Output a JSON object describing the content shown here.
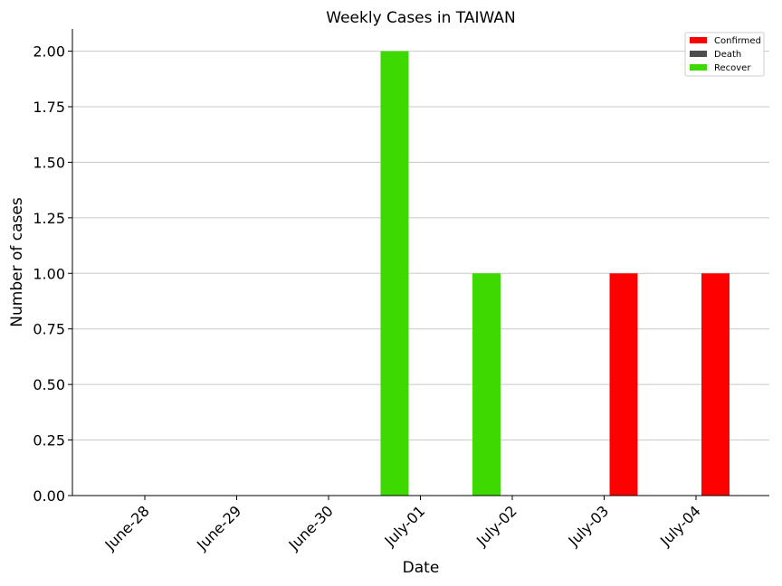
{
  "chart_data": {
    "type": "bar",
    "title": "Weekly Cases in TAIWAN",
    "xlabel": "Date",
    "ylabel": "Number of cases",
    "categories": [
      "June-28",
      "June-29",
      "June-30",
      "July-01",
      "July-02",
      "July-03",
      "July-04"
    ],
    "series": [
      {
        "name": "Confirmed",
        "color": "#ff0000",
        "values": [
          0,
          0,
          0,
          0,
          0,
          1,
          1
        ]
      },
      {
        "name": "Death",
        "color": "#4d4d4d",
        "values": [
          0,
          0,
          0,
          0,
          0,
          0,
          0
        ]
      },
      {
        "name": "Recover",
        "color": "#3dd900",
        "values": [
          0,
          0,
          0,
          2,
          1,
          0,
          0
        ]
      }
    ],
    "ylim": [
      0,
      2.1
    ],
    "yticks": [
      "0.00",
      "0.25",
      "0.50",
      "0.75",
      "1.00",
      "1.25",
      "1.50",
      "1.75",
      "2.00"
    ],
    "grid": "horizontal",
    "legend_position": "top-right"
  }
}
